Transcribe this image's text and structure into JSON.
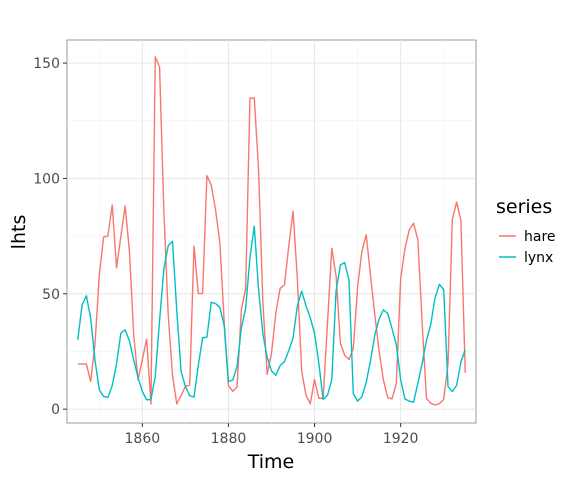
{
  "chart_data": {
    "type": "line",
    "title": "",
    "xlabel": "Time",
    "ylabel": "lhts",
    "xlim": [
      1842.5,
      1937.5
    ],
    "ylim": [
      -6,
      160
    ],
    "x_ticks": [
      1860,
      1880,
      1900,
      1920
    ],
    "y_ticks": [
      0,
      50,
      100,
      150
    ],
    "x_tick_labels": [
      "1860",
      "1880",
      "1900",
      "1920"
    ],
    "y_tick_labels": [
      "0",
      "50",
      "100",
      "150"
    ],
    "grid": true,
    "legend": {
      "title": "series",
      "position": "right"
    },
    "x": [
      1845,
      1846,
      1847,
      1848,
      1849,
      1850,
      1851,
      1852,
      1853,
      1854,
      1855,
      1856,
      1857,
      1858,
      1859,
      1860,
      1861,
      1862,
      1863,
      1864,
      1865,
      1866,
      1867,
      1868,
      1869,
      1870,
      1871,
      1872,
      1873,
      1874,
      1875,
      1876,
      1877,
      1878,
      1879,
      1880,
      1881,
      1882,
      1883,
      1884,
      1885,
      1886,
      1887,
      1888,
      1889,
      1890,
      1891,
      1892,
      1893,
      1894,
      1895,
      1896,
      1897,
      1898,
      1899,
      1900,
      1901,
      1902,
      1903,
      1904,
      1905,
      1906,
      1907,
      1908,
      1909,
      1910,
      1911,
      1912,
      1913,
      1914,
      1915,
      1916,
      1917,
      1918,
      1919,
      1920,
      1921,
      1922,
      1923,
      1924,
      1925,
      1926,
      1927,
      1928,
      1929,
      1930,
      1931,
      1932,
      1933,
      1934,
      1935
    ],
    "series": [
      {
        "name": "hare",
        "color": "#F8766D",
        "values": [
          19.58,
          19.6,
          19.61,
          11.99,
          28.04,
          58,
          74.6,
          75.09,
          88.48,
          61.28,
          74.67,
          88.06,
          68.51,
          32.19,
          12.64,
          21.49,
          30.35,
          2.18,
          152.65,
          148.36,
          85.81,
          41.41,
          14.75,
          2.28,
          5.91,
          9.95,
          10.44,
          70.64,
          50.12,
          50.13,
          101.25,
          97.12,
          86.51,
          72.17,
          38.32,
          10.11,
          7.74,
          9.67,
          43.12,
          52.21,
          134.85,
          134.86,
          103.79,
          46.1,
          15.03,
          24.2,
          41.65,
          52.34,
          53.78,
          70.4,
          85.81,
          56.69,
          16.59,
          6.16,
          2.3,
          12.82,
          4.72,
          4.73,
          37.22,
          69.72,
          57.78,
          28.68,
          23.37,
          21.54,
          26.34,
          53.1,
          68.48,
          75.58,
          57.92,
          40.97,
          24.95,
          12.59,
          4.97,
          4.5,
          11.21,
          56.6,
          69.63,
          77.74,
          80.53,
          73.38,
          36.93,
          4.64,
          2.54,
          1.8,
          2.39,
          4.23,
          19.52,
          82.11,
          89.76,
          81.66,
          15.76
        ]
      },
      {
        "name": "lynx",
        "color": "#00BFC4",
        "values": [
          30.09,
          45.15,
          49.15,
          39.52,
          21.23,
          8.42,
          5.56,
          5.08,
          10.17,
          19.6,
          32.91,
          34.38,
          29.59,
          21.3,
          13.69,
          7.65,
          4.08,
          4.09,
          14.33,
          38.22,
          60.78,
          70.77,
          72.77,
          42.68,
          16.39,
          9.83,
          5.8,
          5.26,
          18.91,
          30.95,
          31.18,
          46.34,
          45.77,
          44.15,
          36.33,
          12.03,
          12.6,
          18.34,
          35.14,
          43.77,
          65.69,
          79.35,
          51.65,
          32.59,
          22.45,
          16.61,
          14.67,
          18.9,
          20.57,
          25.36,
          30.79,
          44.74,
          51.11,
          44.91,
          39.59,
          32.9,
          19.79,
          4.17,
          6.01,
          12.83,
          51.19,
          62.5,
          63.51,
          55.92,
          6.66,
          3.47,
          5.38,
          11.58,
          21.05,
          32.22,
          39.12,
          43.1,
          41.46,
          34.89,
          27.86,
          12.76,
          4.4,
          3.47,
          3.04,
          11.25,
          19.91,
          29.74,
          36.83,
          48.37,
          54.04,
          51.81,
          9.8,
          7.61,
          10.37,
          20.45,
          25.69
        ]
      }
    ]
  }
}
